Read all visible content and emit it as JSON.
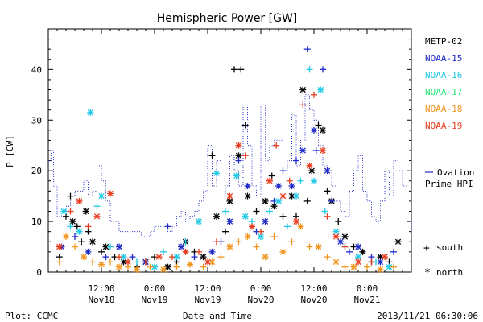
{
  "chart_data": {
    "type": "scatter",
    "title": "Hemispheric Power [GW]",
    "ylabel": "P [GW]",
    "xlabel": "Date and Time",
    "ylim": [
      0,
      48
    ],
    "xlim": [
      0,
      82
    ],
    "y_ticks": [
      0,
      10,
      20,
      30,
      40
    ],
    "x_ticks": [
      {
        "x": 12,
        "line1": "12:00",
        "line2": "Nov18"
      },
      {
        "x": 24,
        "line1": "0:00",
        "line2": "Nov19"
      },
      {
        "x": 36,
        "line1": "12:00",
        "line2": "Nov19"
      },
      {
        "x": 48,
        "line1": "0:00",
        "line2": "Nov20"
      },
      {
        "x": 60,
        "line1": "12:00",
        "line2": "Nov20"
      },
      {
        "x": 72,
        "line1": "0:00",
        "line2": "Nov21"
      }
    ],
    "series": [
      {
        "name": "METP-02",
        "color": "#000000"
      },
      {
        "name": "NOAA-15",
        "color": "#1e2bc8"
      },
      {
        "name": "NOAA-16",
        "color": "#1ec8e6"
      },
      {
        "name": "NOAA-17",
        "color": "#28e678"
      },
      {
        "name": "NOAA-18",
        "color": "#f0961e"
      },
      {
        "name": "NOAA-19",
        "color": "#e63c1e"
      }
    ],
    "ovation_label_line1": "Ovation",
    "ovation_label_line2": "Prime HPI",
    "ovation_color": "#1e2bc8",
    "ovation_x": [
      0,
      0.6,
      1.2,
      2,
      3,
      4,
      5,
      6,
      7,
      8,
      9,
      10,
      11,
      12,
      13,
      14,
      15,
      16,
      17,
      18,
      19,
      20,
      21,
      22,
      23,
      24,
      25,
      26,
      27,
      28,
      29,
      30,
      31,
      32,
      33,
      34,
      35,
      36,
      37,
      38,
      39,
      40,
      41,
      42,
      43,
      44,
      45,
      46,
      47,
      48,
      49,
      50,
      51,
      52,
      53,
      54,
      55,
      56,
      57,
      58,
      59,
      60,
      61,
      62,
      63,
      64,
      65,
      66,
      67,
      68,
      69,
      70,
      71,
      72,
      73,
      74,
      75,
      76,
      77,
      78,
      79,
      80,
      81,
      82
    ],
    "ovation_y": [
      22,
      24,
      17,
      11,
      12,
      13,
      15,
      16,
      16,
      18,
      15,
      16,
      21,
      18,
      14,
      10,
      10,
      8,
      8,
      8,
      8,
      8,
      7,
      7,
      8,
      9,
      9,
      9,
      8,
      9,
      11,
      12,
      10,
      11,
      12,
      14,
      16,
      25,
      17,
      22,
      15,
      17,
      23,
      20,
      17,
      33,
      25,
      17,
      15,
      33,
      22,
      25,
      26,
      26,
      20,
      22,
      31,
      21,
      26,
      35,
      32,
      30,
      25,
      21,
      20,
      17,
      14,
      12,
      11,
      16,
      20,
      23,
      16,
      14,
      11,
      10,
      14,
      20,
      15,
      22,
      20,
      17,
      10,
      8
    ],
    "south_marker": "+",
    "south_label": "south",
    "north_marker": "*",
    "north_label": "north",
    "footer_left": "Plot: CCMC",
    "footer_right": "2013/11/21 06:30:06",
    "points": [
      {
        "s": 0,
        "h": "s",
        "x": 2.5,
        "y": 3
      },
      {
        "s": 0,
        "h": "s",
        "x": 4,
        "y": 11
      },
      {
        "s": 0,
        "h": "s",
        "x": 5,
        "y": 15
      },
      {
        "s": 0,
        "h": "n",
        "x": 5.5,
        "y": 10
      },
      {
        "s": 0,
        "h": "s",
        "x": 6.5,
        "y": 9
      },
      {
        "s": 0,
        "h": "s",
        "x": 7.5,
        "y": 6
      },
      {
        "s": 0,
        "h": "n",
        "x": 8.5,
        "y": 12
      },
      {
        "s": 0,
        "h": "s",
        "x": 9,
        "y": 8
      },
      {
        "s": 0,
        "h": "n",
        "x": 10,
        "y": 6
      },
      {
        "s": 0,
        "h": "s",
        "x": 12,
        "y": 4
      },
      {
        "s": 0,
        "h": "n",
        "x": 13,
        "y": 5
      },
      {
        "s": 0,
        "h": "s",
        "x": 15,
        "y": 3
      },
      {
        "s": 0,
        "h": "n",
        "x": 17,
        "y": 2
      },
      {
        "s": 0,
        "h": "s",
        "x": 20,
        "y": 1
      },
      {
        "s": 0,
        "h": "n",
        "x": 22,
        "y": 2
      },
      {
        "s": 0,
        "h": "s",
        "x": 24,
        "y": 3
      },
      {
        "s": 0,
        "h": "n",
        "x": 27,
        "y": 1
      },
      {
        "s": 0,
        "h": "s",
        "x": 29,
        "y": 2
      },
      {
        "s": 0,
        "h": "n",
        "x": 31,
        "y": 6
      },
      {
        "s": 0,
        "h": "s",
        "x": 33,
        "y": 4
      },
      {
        "s": 0,
        "h": "n",
        "x": 35,
        "y": 3
      },
      {
        "s": 0,
        "h": "s",
        "x": 37,
        "y": 23
      },
      {
        "s": 0,
        "h": "n",
        "x": 38,
        "y": 11
      },
      {
        "s": 0,
        "h": "s",
        "x": 40,
        "y": 8
      },
      {
        "s": 0,
        "h": "n",
        "x": 41,
        "y": 14
      },
      {
        "s": 0,
        "h": "s",
        "x": 42,
        "y": 40
      },
      {
        "s": 0,
        "h": "s",
        "x": 43.5,
        "y": 40
      },
      {
        "s": 0,
        "h": "n",
        "x": 43,
        "y": 23
      },
      {
        "s": 0,
        "h": "s",
        "x": 44.5,
        "y": 29
      },
      {
        "s": 0,
        "h": "n",
        "x": 45,
        "y": 15
      },
      {
        "s": 0,
        "h": "s",
        "x": 47,
        "y": 12
      },
      {
        "s": 0,
        "h": "n",
        "x": 49,
        "y": 14
      },
      {
        "s": 0,
        "h": "s",
        "x": 50.5,
        "y": 19
      },
      {
        "s": 0,
        "h": "n",
        "x": 51,
        "y": 13
      },
      {
        "s": 0,
        "h": "s",
        "x": 53,
        "y": 11
      },
      {
        "s": 0,
        "h": "n",
        "x": 55,
        "y": 15
      },
      {
        "s": 0,
        "h": "s",
        "x": 56,
        "y": 11
      },
      {
        "s": 0,
        "h": "n",
        "x": 57.5,
        "y": 36
      },
      {
        "s": 0,
        "h": "s",
        "x": 58.5,
        "y": 14
      },
      {
        "s": 0,
        "h": "n",
        "x": 59.5,
        "y": 20
      },
      {
        "s": 0,
        "h": "s",
        "x": 61,
        "y": 29
      },
      {
        "s": 0,
        "h": "n",
        "x": 62,
        "y": 28
      },
      {
        "s": 0,
        "h": "s",
        "x": 63,
        "y": 16
      },
      {
        "s": 0,
        "h": "n",
        "x": 64,
        "y": 14
      },
      {
        "s": 0,
        "h": "s",
        "x": 65.5,
        "y": 10
      },
      {
        "s": 0,
        "h": "n",
        "x": 67,
        "y": 7
      },
      {
        "s": 0,
        "h": "s",
        "x": 69,
        "y": 5
      },
      {
        "s": 0,
        "h": "n",
        "x": 71,
        "y": 4
      },
      {
        "s": 0,
        "h": "s",
        "x": 73,
        "y": 2
      },
      {
        "s": 0,
        "h": "n",
        "x": 75,
        "y": 3
      },
      {
        "s": 0,
        "h": "s",
        "x": 77,
        "y": 2
      },
      {
        "s": 0,
        "h": "n",
        "x": 79,
        "y": 6
      },
      {
        "s": 1,
        "h": "n",
        "x": 3,
        "y": 5
      },
      {
        "s": 1,
        "h": "s",
        "x": 6,
        "y": 7
      },
      {
        "s": 1,
        "h": "n",
        "x": 9,
        "y": 4
      },
      {
        "s": 1,
        "h": "s",
        "x": 13,
        "y": 3
      },
      {
        "s": 1,
        "h": "n",
        "x": 16,
        "y": 5
      },
      {
        "s": 1,
        "h": "s",
        "x": 19,
        "y": 3
      },
      {
        "s": 1,
        "h": "n",
        "x": 22,
        "y": 2
      },
      {
        "s": 1,
        "h": "s",
        "x": 27,
        "y": 9
      },
      {
        "s": 1,
        "h": "n",
        "x": 30,
        "y": 5
      },
      {
        "s": 1,
        "h": "s",
        "x": 33,
        "y": 3
      },
      {
        "s": 1,
        "h": "n",
        "x": 37,
        "y": 4
      },
      {
        "s": 1,
        "h": "s",
        "x": 39,
        "y": 6
      },
      {
        "s": 1,
        "h": "n",
        "x": 41,
        "y": 10
      },
      {
        "s": 1,
        "h": "s",
        "x": 43,
        "y": 22
      },
      {
        "s": 1,
        "h": "n",
        "x": 45,
        "y": 17
      },
      {
        "s": 1,
        "h": "s",
        "x": 47,
        "y": 8
      },
      {
        "s": 1,
        "h": "n",
        "x": 49,
        "y": 10
      },
      {
        "s": 1,
        "h": "s",
        "x": 51,
        "y": 14
      },
      {
        "s": 1,
        "h": "n",
        "x": 52,
        "y": 17
      },
      {
        "s": 1,
        "h": "s",
        "x": 53,
        "y": 20
      },
      {
        "s": 1,
        "h": "n",
        "x": 55,
        "y": 17
      },
      {
        "s": 1,
        "h": "s",
        "x": 56,
        "y": 22
      },
      {
        "s": 1,
        "h": "n",
        "x": 57.5,
        "y": 24
      },
      {
        "s": 1,
        "h": "s",
        "x": 58.5,
        "y": 44
      },
      {
        "s": 1,
        "h": "n",
        "x": 60,
        "y": 28
      },
      {
        "s": 1,
        "h": "s",
        "x": 60.5,
        "y": 24
      },
      {
        "s": 1,
        "h": "s",
        "x": 62,
        "y": 40
      },
      {
        "s": 1,
        "h": "n",
        "x": 63,
        "y": 20
      },
      {
        "s": 1,
        "h": "s",
        "x": 64,
        "y": 14
      },
      {
        "s": 1,
        "h": "n",
        "x": 66,
        "y": 6
      },
      {
        "s": 1,
        "h": "s",
        "x": 68,
        "y": 4
      },
      {
        "s": 1,
        "h": "n",
        "x": 70,
        "y": 5
      },
      {
        "s": 1,
        "h": "s",
        "x": 73,
        "y": 3
      },
      {
        "s": 1,
        "h": "n",
        "x": 75,
        "y": 2
      },
      {
        "s": 1,
        "h": "s",
        "x": 78,
        "y": 4
      },
      {
        "s": 2,
        "h": "n",
        "x": 3.5,
        "y": 12
      },
      {
        "s": 2,
        "h": "s",
        "x": 5,
        "y": 9
      },
      {
        "s": 2,
        "h": "n",
        "x": 7,
        "y": 8
      },
      {
        "s": 2,
        "h": "n",
        "x": 9.5,
        "y": 31.5
      },
      {
        "s": 2,
        "h": "s",
        "x": 11,
        "y": 13
      },
      {
        "s": 2,
        "h": "n",
        "x": 12,
        "y": 15
      },
      {
        "s": 2,
        "h": "s",
        "x": 14,
        "y": 5
      },
      {
        "s": 2,
        "h": "n",
        "x": 17,
        "y": 3
      },
      {
        "s": 2,
        "h": "s",
        "x": 20,
        "y": 2
      },
      {
        "s": 2,
        "h": "n",
        "x": 24,
        "y": 1
      },
      {
        "s": 2,
        "h": "s",
        "x": 26,
        "y": 4
      },
      {
        "s": 2,
        "h": "n",
        "x": 29,
        "y": 3
      },
      {
        "s": 2,
        "h": "s",
        "x": 31,
        "y": 6
      },
      {
        "s": 2,
        "h": "n",
        "x": 34,
        "y": 10
      },
      {
        "s": 2,
        "h": "n",
        "x": 38,
        "y": 19.5
      },
      {
        "s": 2,
        "h": "s",
        "x": 40,
        "y": 12
      },
      {
        "s": 2,
        "h": "n",
        "x": 42.5,
        "y": 19
      },
      {
        "s": 2,
        "h": "n",
        "x": 44.5,
        "y": 11
      },
      {
        "s": 2,
        "h": "s",
        "x": 46,
        "y": 10
      },
      {
        "s": 2,
        "h": "n",
        "x": 48,
        "y": 7
      },
      {
        "s": 2,
        "h": "s",
        "x": 50,
        "y": 12
      },
      {
        "s": 2,
        "h": "n",
        "x": 52,
        "y": 14
      },
      {
        "s": 2,
        "h": "s",
        "x": 54,
        "y": 9
      },
      {
        "s": 2,
        "h": "n",
        "x": 56,
        "y": 15
      },
      {
        "s": 2,
        "h": "s",
        "x": 57,
        "y": 18
      },
      {
        "s": 2,
        "h": "s",
        "x": 59,
        "y": 40
      },
      {
        "s": 2,
        "h": "n",
        "x": 61.5,
        "y": 36
      },
      {
        "s": 2,
        "h": "n",
        "x": 60,
        "y": 18
      },
      {
        "s": 2,
        "h": "s",
        "x": 62.5,
        "y": 12
      },
      {
        "s": 2,
        "h": "n",
        "x": 65,
        "y": 8
      },
      {
        "s": 2,
        "h": "s",
        "x": 67,
        "y": 5
      },
      {
        "s": 2,
        "h": "n",
        "x": 70,
        "y": 3
      },
      {
        "s": 2,
        "h": "s",
        "x": 74,
        "y": 2
      },
      {
        "s": 2,
        "h": "n",
        "x": 77,
        "y": 1
      },
      {
        "s": 4,
        "h": "s",
        "x": 2.5,
        "y": 2
      },
      {
        "s": 4,
        "h": "n",
        "x": 4,
        "y": 7
      },
      {
        "s": 4,
        "h": "s",
        "x": 6,
        "y": 5
      },
      {
        "s": 4,
        "h": "n",
        "x": 8,
        "y": 3
      },
      {
        "s": 4,
        "h": "s",
        "x": 10,
        "y": 2
      },
      {
        "s": 4,
        "h": "n",
        "x": 12,
        "y": 1.5
      },
      {
        "s": 4,
        "h": "s",
        "x": 14,
        "y": 2
      },
      {
        "s": 4,
        "h": "n",
        "x": 16,
        "y": 1
      },
      {
        "s": 4,
        "h": "s",
        "x": 18,
        "y": 1
      },
      {
        "s": 4,
        "h": "n",
        "x": 20,
        "y": 0.5
      },
      {
        "s": 4,
        "h": "s",
        "x": 23,
        "y": 1
      },
      {
        "s": 4,
        "h": "n",
        "x": 26,
        "y": 0.5
      },
      {
        "s": 4,
        "h": "s",
        "x": 29,
        "y": 1
      },
      {
        "s": 4,
        "h": "n",
        "x": 32,
        "y": 1.5
      },
      {
        "s": 4,
        "h": "s",
        "x": 35,
        "y": 1
      },
      {
        "s": 4,
        "h": "n",
        "x": 37,
        "y": 2
      },
      {
        "s": 4,
        "h": "s",
        "x": 39,
        "y": 3
      },
      {
        "s": 4,
        "h": "n",
        "x": 41,
        "y": 5
      },
      {
        "s": 4,
        "h": "s",
        "x": 43,
        "y": 6
      },
      {
        "s": 4,
        "h": "n",
        "x": 45,
        "y": 7
      },
      {
        "s": 4,
        "h": "s",
        "x": 47,
        "y": 5
      },
      {
        "s": 4,
        "h": "n",
        "x": 49,
        "y": 3
      },
      {
        "s": 4,
        "h": "s",
        "x": 51,
        "y": 7
      },
      {
        "s": 4,
        "h": "n",
        "x": 53,
        "y": 4
      },
      {
        "s": 4,
        "h": "s",
        "x": 55,
        "y": 6
      },
      {
        "s": 4,
        "h": "n",
        "x": 57,
        "y": 9
      },
      {
        "s": 4,
        "h": "s",
        "x": 59,
        "y": 5
      },
      {
        "s": 4,
        "h": "n",
        "x": 61,
        "y": 5
      },
      {
        "s": 4,
        "h": "s",
        "x": 63,
        "y": 3
      },
      {
        "s": 4,
        "h": "n",
        "x": 65,
        "y": 2
      },
      {
        "s": 4,
        "h": "s",
        "x": 67,
        "y": 1
      },
      {
        "s": 4,
        "h": "n",
        "x": 69,
        "y": 1
      },
      {
        "s": 4,
        "h": "s",
        "x": 72,
        "y": 1
      },
      {
        "s": 4,
        "h": "n",
        "x": 75,
        "y": 0.5
      },
      {
        "s": 4,
        "h": "s",
        "x": 78,
        "y": 1
      },
      {
        "s": 5,
        "h": "n",
        "x": 2.5,
        "y": 5
      },
      {
        "s": 5,
        "h": "s",
        "x": 5,
        "y": 12
      },
      {
        "s": 5,
        "h": "n",
        "x": 7,
        "y": 14
      },
      {
        "s": 5,
        "h": "s",
        "x": 9,
        "y": 9
      },
      {
        "s": 5,
        "h": "n",
        "x": 11,
        "y": 11
      },
      {
        "s": 5,
        "h": "n",
        "x": 14,
        "y": 15.5
      },
      {
        "s": 5,
        "h": "s",
        "x": 16,
        "y": 3
      },
      {
        "s": 5,
        "h": "n",
        "x": 18,
        "y": 2
      },
      {
        "s": 5,
        "h": "s",
        "x": 22,
        "y": 2
      },
      {
        "s": 5,
        "h": "n",
        "x": 25,
        "y": 3
      },
      {
        "s": 5,
        "h": "s",
        "x": 28,
        "y": 3
      },
      {
        "s": 5,
        "h": "n",
        "x": 31,
        "y": 4
      },
      {
        "s": 5,
        "h": "s",
        "x": 34,
        "y": 4
      },
      {
        "s": 5,
        "h": "n",
        "x": 36,
        "y": 2
      },
      {
        "s": 5,
        "h": "s",
        "x": 38,
        "y": 6
      },
      {
        "s": 5,
        "h": "n",
        "x": 41,
        "y": 15
      },
      {
        "s": 5,
        "h": "n",
        "x": 43,
        "y": 25
      },
      {
        "s": 5,
        "h": "s",
        "x": 44.5,
        "y": 23
      },
      {
        "s": 5,
        "h": "n",
        "x": 46,
        "y": 9
      },
      {
        "s": 5,
        "h": "s",
        "x": 48,
        "y": 8
      },
      {
        "s": 5,
        "h": "n",
        "x": 50,
        "y": 18
      },
      {
        "s": 5,
        "h": "s",
        "x": 51.5,
        "y": 25
      },
      {
        "s": 5,
        "h": "n",
        "x": 53,
        "y": 15
      },
      {
        "s": 5,
        "h": "s",
        "x": 54.5,
        "y": 18
      },
      {
        "s": 5,
        "h": "n",
        "x": 56,
        "y": 10
      },
      {
        "s": 5,
        "h": "s",
        "x": 57.5,
        "y": 33
      },
      {
        "s": 5,
        "h": "n",
        "x": 59,
        "y": 21
      },
      {
        "s": 5,
        "h": "s",
        "x": 60,
        "y": 35
      },
      {
        "s": 5,
        "h": "n",
        "x": 62,
        "y": 24
      },
      {
        "s": 5,
        "h": "s",
        "x": 63,
        "y": 11
      },
      {
        "s": 5,
        "h": "n",
        "x": 65,
        "y": 7
      },
      {
        "s": 5,
        "h": "s",
        "x": 67,
        "y": 5
      },
      {
        "s": 5,
        "h": "n",
        "x": 70,
        "y": 2
      },
      {
        "s": 5,
        "h": "s",
        "x": 73,
        "y": 2
      },
      {
        "s": 5,
        "h": "n",
        "x": 76,
        "y": 3
      }
    ]
  }
}
